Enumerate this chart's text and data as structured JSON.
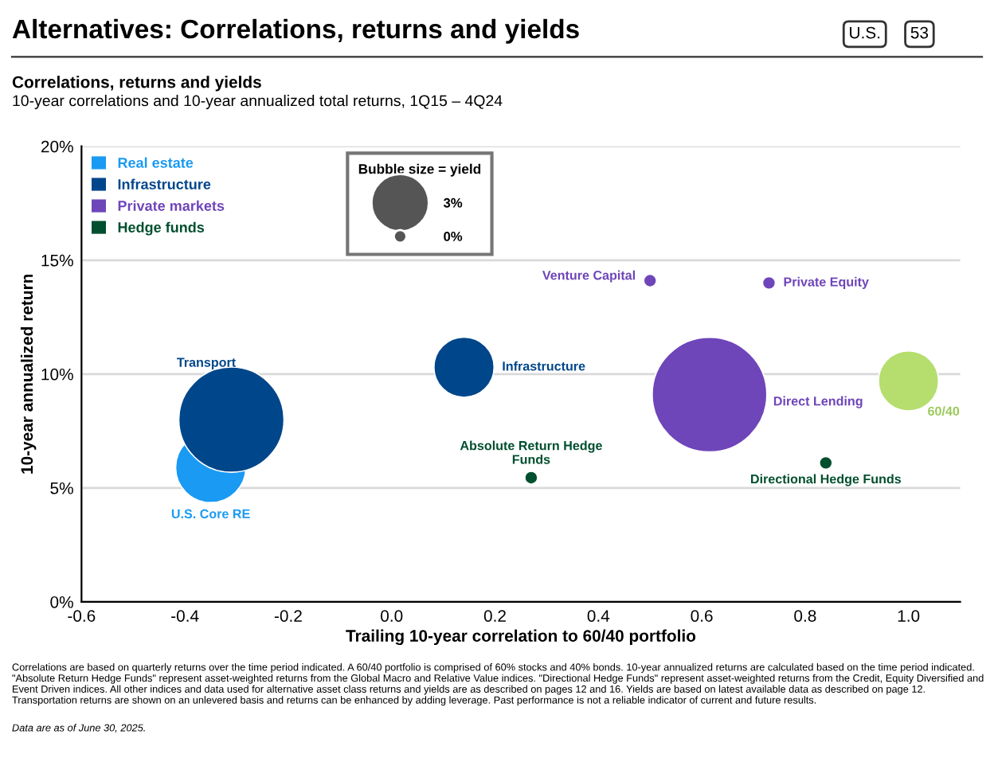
{
  "chart_data": {
    "type": "bubble",
    "title": "Alternatives: Correlations, returns and yields",
    "subtitle": "Correlations, returns and yields",
    "xlabel": "Trailing 10-year correlation to 60/40 portfolio",
    "ylabel": "10-year annualized return",
    "legend_title": "Bubble size = yield",
    "size_legend": [
      {
        "value": 3,
        "label": "3%"
      },
      {
        "value": 0.15,
        "label": "0%"
      }
    ],
    "xlim": [
      -0.6,
      1.1
    ],
    "ylim": [
      0,
      20
    ],
    "xticks": [
      {
        "value": -0.6,
        "label": "-0.6"
      },
      {
        "value": -0.4,
        "label": "-0.4"
      },
      {
        "value": -0.2,
        "label": "-0.2"
      },
      {
        "value": 0,
        "label": "0.0"
      },
      {
        "value": 0.2,
        "label": "0.2"
      },
      {
        "value": 0.4,
        "label": "0.4"
      },
      {
        "value": 0.6,
        "label": "0.6"
      },
      {
        "value": 0.8,
        "label": "0.8"
      },
      {
        "value": 1.0,
        "label": "1.0"
      }
    ],
    "yticks": [
      {
        "value": 0,
        "label": "0%"
      },
      {
        "value": 5,
        "label": "5%"
      },
      {
        "value": 10,
        "label": "10%"
      },
      {
        "value": 15,
        "label": "15%"
      },
      {
        "value": 20,
        "label": "20%"
      }
    ],
    "grid": "y",
    "legend": "top left",
    "series": [
      {
        "name": "Real estate",
        "color": "#1a9af2",
        "x": [
          -0.35
        ],
        "values": [
          5.9
        ],
        "sizes": [
          4.5
        ]
      },
      {
        "name": "Infrastructure",
        "color": "#00468b",
        "x": [
          -0.31,
          0.14
        ],
        "values": [
          8.0,
          10.3
        ],
        "sizes": [
          10.1,
          3.3
        ]
      },
      {
        "name": "Private markets",
        "color": "#6f45ba",
        "x": [
          0.5,
          0.73,
          0.615
        ],
        "values": [
          14.1,
          14.0,
          9.1
        ],
        "sizes": [
          0.15,
          0.15,
          12.0
        ]
      },
      {
        "name": "Hedge funds",
        "color": "#004f2f",
        "x": [
          0.27,
          0.84
        ],
        "values": [
          5.45,
          6.1
        ],
        "sizes": [
          0.15,
          0.15
        ]
      },
      {
        "color": "#b5de6e",
        "x": [
          1.0
        ],
        "values": [
          9.7
        ],
        "sizes": [
          3.3
        ]
      }
    ],
    "annotations": [
      "Transport",
      "U.S. Core RE",
      "Infrastructure",
      "Direct Lending",
      {
        "text": "Venture Capital",
        "x": 0.5,
        "y": 14.1
      },
      {
        "text": "Private Equity",
        "x": 0.73,
        "y": 14.0
      },
      {
        "text": "Absolute Return Hedge\nFunds",
        "x": 0.27,
        "y": 5.45
      },
      {
        "text": "Directional Hedge Funds",
        "x": 0.84,
        "y": 6.1
      },
      {
        "text": "60/40",
        "x": 1.0,
        "y": 9.7
      },
      "10-year correlations and 10-year annualized total returns, 1Q15 – 4Q24",
      "U.S.",
      "53",
      "Correlations are based on quarterly returns over the time period indicated. A 60/40 portfolio is comprised of 60% stocks and 40% bonds. 10-year annualized returns are calculated based on the time period indicated. \"Absolute Return Hedge Funds\" represent asset-weighted returns from the Global Macro and Relative Value indices. \"Directional Hedge Funds\" represent asset-weighted returns from the Credit, Equity Diversified and Event Driven indices. All other indices and data used for alternative asset class returns and yields are as described on pages 12 and 16. Yields are based on latest available data as described on page 12. Transportation returns are shown on an unlevered basis and returns can be enhanced by adding leverage. Past performance is not a reliable indicator of current and future results.",
      "Data are as of June 30, 2025."
    ]
  }
}
